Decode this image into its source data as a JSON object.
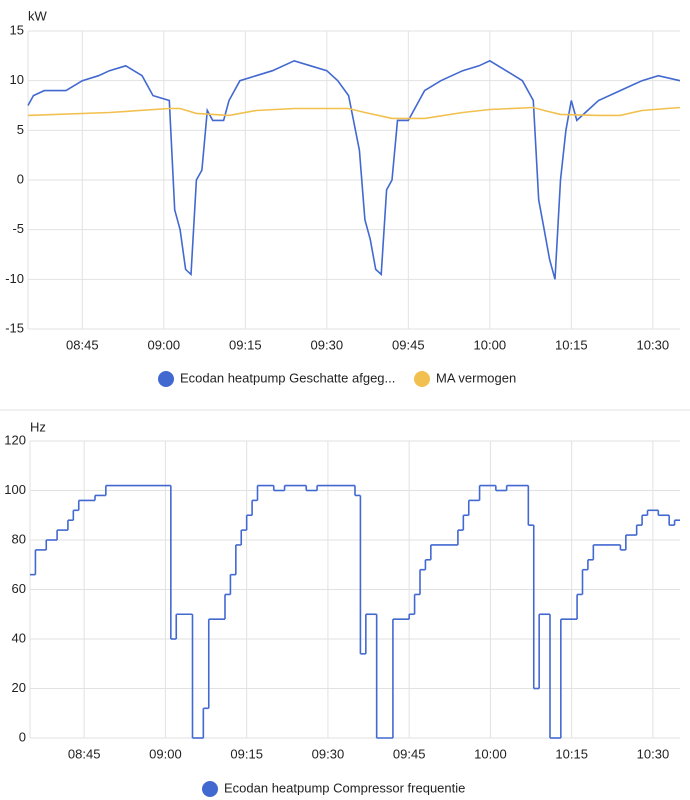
{
  "chart_data": [
    {
      "type": "line",
      "y_label": "kW",
      "x": [
        "08:35",
        "08:36",
        "08:38",
        "08:42",
        "08:45",
        "08:48",
        "08:50",
        "08:53",
        "08:56",
        "08:58",
        "09:01",
        "09:02",
        "09:03",
        "09:04",
        "09:05",
        "09:06",
        "09:07",
        "09:08",
        "09:09",
        "09:11",
        "09:12",
        "09:14",
        "09:17",
        "09:20",
        "09:24",
        "09:27",
        "09:30",
        "09:32",
        "09:34",
        "09:36",
        "09:37",
        "09:38",
        "09:39",
        "09:40",
        "09:41",
        "09:42",
        "09:43",
        "09:45",
        "09:47",
        "09:48",
        "09:51",
        "09:55",
        "09:58",
        "10:00",
        "10:03",
        "10:06",
        "10:08",
        "10:09",
        "10:10",
        "10:11",
        "10:12",
        "10:13",
        "10:14",
        "10:15",
        "10:16",
        "10:18",
        "10:20",
        "10:24",
        "10:28",
        "10:31",
        "10:35"
      ],
      "series": [
        {
          "name": "Ecodan heatpump Geschatte afgeg...",
          "color": "#4269d0",
          "values": [
            7.5,
            8.5,
            9,
            9,
            10,
            10.5,
            11,
            11.5,
            10.5,
            8.5,
            8,
            -3,
            -5,
            -9,
            -9.5,
            0,
            1,
            7,
            6,
            6,
            8,
            10,
            10.5,
            11,
            12,
            11.5,
            11,
            10,
            8.5,
            3,
            -4,
            -6,
            -9,
            -9.5,
            -1,
            0,
            6,
            6,
            8,
            9,
            10,
            11,
            11.5,
            12,
            11,
            10,
            8,
            -2,
            -5,
            -8,
            -10,
            0,
            5,
            8,
            6,
            7,
            8,
            9,
            10,
            10.5,
            10
          ]
        },
        {
          "name": "MA vermogen",
          "color": "#f2c04e",
          "values": [
            6.5,
            null,
            null,
            null,
            null,
            null,
            6.8,
            null,
            null,
            null,
            7.2,
            null,
            7.2,
            null,
            null,
            6.7,
            null,
            null,
            null,
            null,
            6.5,
            null,
            7,
            null,
            7.2,
            null,
            null,
            null,
            7.2,
            null,
            6.8,
            null,
            null,
            null,
            null,
            6.2,
            null,
            null,
            null,
            6.2,
            null,
            6.8,
            null,
            7.1,
            null,
            null,
            7.3,
            null,
            7,
            null,
            null,
            6.6,
            null,
            null,
            null,
            null,
            6.5,
            6.5,
            7,
            null,
            7.3
          ],
          "connect_gaps": true
        }
      ],
      "xlim": [
        "08:35",
        "10:35"
      ],
      "xticks": [
        "08:45",
        "09:00",
        "09:15",
        "09:30",
        "09:45",
        "10:00",
        "10:15",
        "10:30"
      ],
      "ylim": [
        -15,
        15
      ],
      "yticks": [
        -15,
        -10,
        -5,
        0,
        5,
        10,
        15
      ],
      "grid": true,
      "step": false
    },
    {
      "type": "line",
      "y_label": "Hz",
      "x": [
        "08:35",
        "08:36",
        "08:38",
        "08:40",
        "08:42",
        "08:43",
        "08:44",
        "08:47",
        "08:49",
        "09:01",
        "09:02",
        "09:05",
        "09:07",
        "09:08",
        "09:11",
        "09:12",
        "09:13",
        "09:14",
        "09:15",
        "09:16",
        "09:17",
        "09:20",
        "09:22",
        "09:26",
        "09:28",
        "09:35",
        "09:36",
        "09:37",
        "09:39",
        "09:42",
        "09:45",
        "09:46",
        "09:47",
        "09:48",
        "09:49",
        "09:54",
        "09:55",
        "09:56",
        "09:58",
        "10:01",
        "10:03",
        "10:07",
        "10:08",
        "10:09",
        "10:11",
        "10:13",
        "10:16",
        "10:17",
        "10:18",
        "10:19",
        "10:24",
        "10:25",
        "10:27",
        "10:28",
        "10:29",
        "10:31",
        "10:33",
        "10:34"
      ],
      "series": [
        {
          "name": "Ecodan heatpump Compressor frequentie",
          "color": "#4269d0",
          "values": [
            66,
            76,
            80,
            84,
            88,
            92,
            96,
            98,
            102,
            40,
            50,
            0,
            12,
            48,
            58,
            66,
            78,
            84,
            90,
            96,
            102,
            100,
            102,
            100,
            102,
            98,
            34,
            50,
            0,
            48,
            50,
            58,
            68,
            72,
            78,
            84,
            90,
            96,
            102,
            100,
            102,
            86,
            20,
            50,
            0,
            48,
            58,
            68,
            72,
            78,
            76,
            82,
            86,
            90,
            92,
            90,
            86,
            88
          ]
        }
      ],
      "xlim": [
        "08:35",
        "10:35"
      ],
      "xticks": [
        "08:45",
        "09:00",
        "09:15",
        "09:30",
        "09:45",
        "10:00",
        "10:15",
        "10:30"
      ],
      "ylim": [
        0,
        120
      ],
      "yticks": [
        0,
        20,
        40,
        60,
        80,
        100,
        120
      ],
      "grid": true,
      "step": true
    }
  ]
}
